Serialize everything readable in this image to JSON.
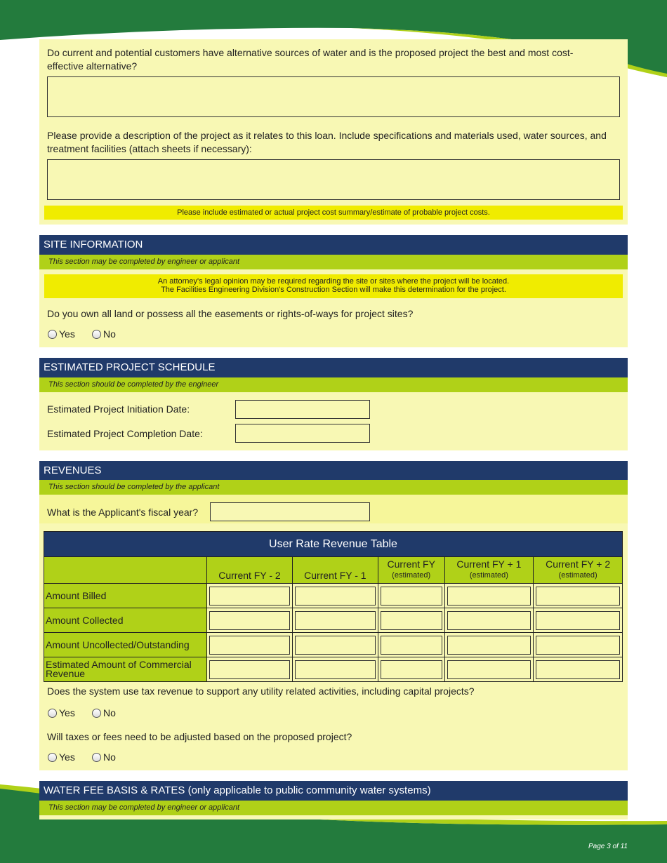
{
  "colors": {
    "green": "#237b3d",
    "lime": "#b0d118",
    "navy": "#203a6a",
    "pale": "#f8f8b4",
    "note": "#f0ec00"
  },
  "q_alternatives": "Do current and potential customers have alternative sources of water and is the proposed project the best and most cost-effective alternative?",
  "q_description": "Please provide a description of the project as it relates to this loan. Include specifications and materials used, water sources, and treatment facilities (attach sheets if necessary):",
  "note_cost": "Please include estimated or actual project cost summary/estimate of probable project costs.",
  "site": {
    "title": "SITE INFORMATION",
    "subtitle": "This section may be completed by engineer or applicant",
    "note1": "An attorney's legal opinion may be required regarding the site or sites where the project will be located.",
    "note2": "The Facilities Engineering Division's Construction Section will make this determination for the project.",
    "question": "Do you own all land or possess all the easements or rights-of-ways for project sites?",
    "yes": "Yes",
    "no": "No"
  },
  "schedule": {
    "title": "ESTIMATED PROJECT SCHEDULE",
    "subtitle": "This section should be completed by the engineer",
    "initiation": "Estimated Project Initiation Date:",
    "completion": "Estimated Project Completion Date:"
  },
  "revenues": {
    "title": "REVENUES",
    "subtitle": "This section should be completed by the applicant",
    "fiscal": "What is the Applicant's fiscal year?",
    "table": {
      "title": "User Rate Revenue Table",
      "cols": [
        {
          "l": "Current FY - 2",
          "s": ""
        },
        {
          "l": "Current FY - 1",
          "s": ""
        },
        {
          "l": "Current FY",
          "s": "(estimated)"
        },
        {
          "l": "Current FY + 1",
          "s": "(estimated)"
        },
        {
          "l": "Current FY + 2",
          "s": "(estimated)"
        }
      ],
      "rows": [
        "Amount Billed",
        "Amount Collected",
        "Amount Uncollected/Outstanding",
        "Estimated Amount of Commercial Revenue"
      ]
    },
    "q_tax": "Does the system use tax revenue to support any utility related activities, including capital projects?",
    "q_adjust": "Will taxes or fees need to be adjusted based on the proposed project?",
    "yes": "Yes",
    "no": "No"
  },
  "waterfee": {
    "title": "WATER FEE BASIS & RATES (only applicable to public community water systems)",
    "subtitle": "This section may be completed by engineer or applicant"
  },
  "footer": {
    "page": "Page 3 of 11"
  }
}
